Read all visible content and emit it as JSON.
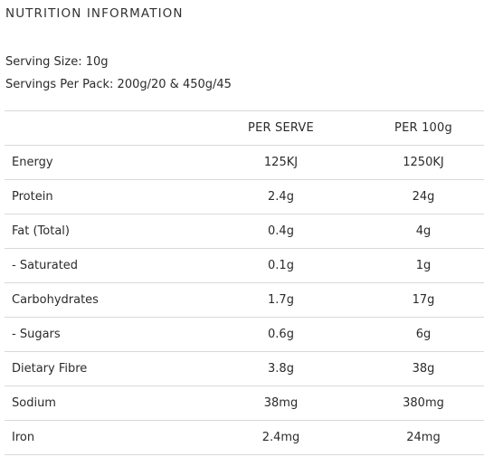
{
  "title": "NUTRITION INFORMATION",
  "serving_size": "Serving Size: 10g",
  "servings_per_pack": "Servings Per Pack: 200g/20 & 450g/45",
  "table": {
    "headers": [
      "",
      "PER SERVE",
      "PER 100g"
    ],
    "rows": [
      {
        "name": "Energy",
        "per_serve": "125KJ",
        "per_100g": "1250KJ"
      },
      {
        "name": "Protein",
        "per_serve": "2.4g",
        "per_100g": "24g"
      },
      {
        "name": "Fat (Total)",
        "per_serve": "0.4g",
        "per_100g": "4g"
      },
      {
        "name": "- Saturated",
        "per_serve": "0.1g",
        "per_100g": "1g"
      },
      {
        "name": "Carbohydrates",
        "per_serve": "1.7g",
        "per_100g": "17g"
      },
      {
        "name": "- Sugars",
        "per_serve": "0.6g",
        "per_100g": "6g"
      },
      {
        "name": "Dietary Fibre",
        "per_serve": "3.8g",
        "per_100g": "38g"
      },
      {
        "name": "Sodium",
        "per_serve": "38mg",
        "per_100g": "380mg"
      },
      {
        "name": "Iron",
        "per_serve": "2.4mg",
        "per_100g": "24mg"
      }
    ]
  }
}
